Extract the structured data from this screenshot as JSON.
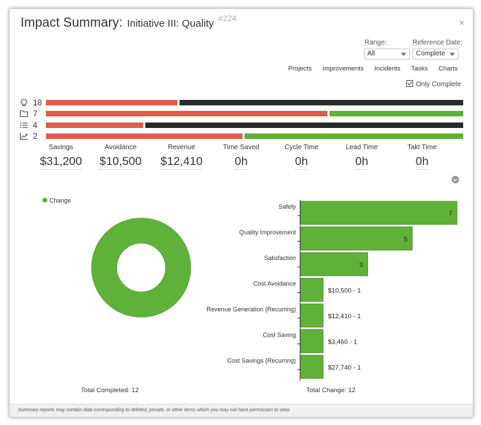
{
  "header": {
    "title": "Impact Summary:",
    "subtitle": "Initiative III: Quality",
    "id_label": "#224",
    "close_glyph": "×"
  },
  "controls": {
    "range_label": "Range:",
    "range_value": "All",
    "ref_label": "Reference Date:",
    "ref_value": "Complete",
    "links": [
      "Projects",
      "Improvements",
      "Incidents",
      "Tasks",
      "Charts"
    ],
    "only_complete_label": "Only Complete",
    "only_complete_checked": true
  },
  "bars": [
    {
      "icon": "lightbulb-icon",
      "count": "18",
      "red_fraction": 0.315,
      "rest": "dark"
    },
    {
      "icon": "folder-icon",
      "count": "7",
      "red_fraction": 0.675,
      "rest": "green"
    },
    {
      "icon": "list-icon",
      "count": "4",
      "red_fraction": 0.233,
      "rest": "dark"
    },
    {
      "icon": "trend-chart-icon",
      "count": "2",
      "red_fraction": 0.471,
      "rest": "green"
    }
  ],
  "metrics": [
    {
      "label": "Savings",
      "value": "$31,200"
    },
    {
      "label": "Avoidance",
      "value": "$10,500"
    },
    {
      "label": "Revenue",
      "value": "$12,410"
    },
    {
      "label": "Time Saved",
      "value": "0h"
    },
    {
      "label": "Cycle Time",
      "value": "0h"
    },
    {
      "label": "Lead Time",
      "value": "0h"
    },
    {
      "label": "Takt Time",
      "value": "0h"
    }
  ],
  "donut": {
    "legend_label": "Change",
    "color": "#5fb139",
    "total_label": "Total Completed: 12"
  },
  "chart_data": {
    "type": "bar",
    "orientation": "horizontal",
    "categories": [
      "Safety",
      "Quality Improvement",
      "Satisfaction",
      "Cost Avoidance",
      "Revenue Generation (Recurring)",
      "Cost Saving",
      "Cost Savings (Recurring)"
    ],
    "values": [
      7,
      5,
      3,
      1,
      1,
      1,
      1
    ],
    "bar_labels": [
      "7",
      "5",
      "3",
      "$10,500 - 1",
      "$12,410 - 1",
      "$3,460 - 1",
      "$27,740 - 1"
    ],
    "xlim": [
      0,
      7
    ],
    "color": "#5fb139",
    "total_label": "Total Change: 12"
  },
  "footer_text": "Summary reports may contain data corresponding to deleted, private, or other items which you may not have permission to view.",
  "colors": {
    "red": "#d9604b",
    "dark": "#2a2a2a",
    "green": "#5fb139"
  }
}
